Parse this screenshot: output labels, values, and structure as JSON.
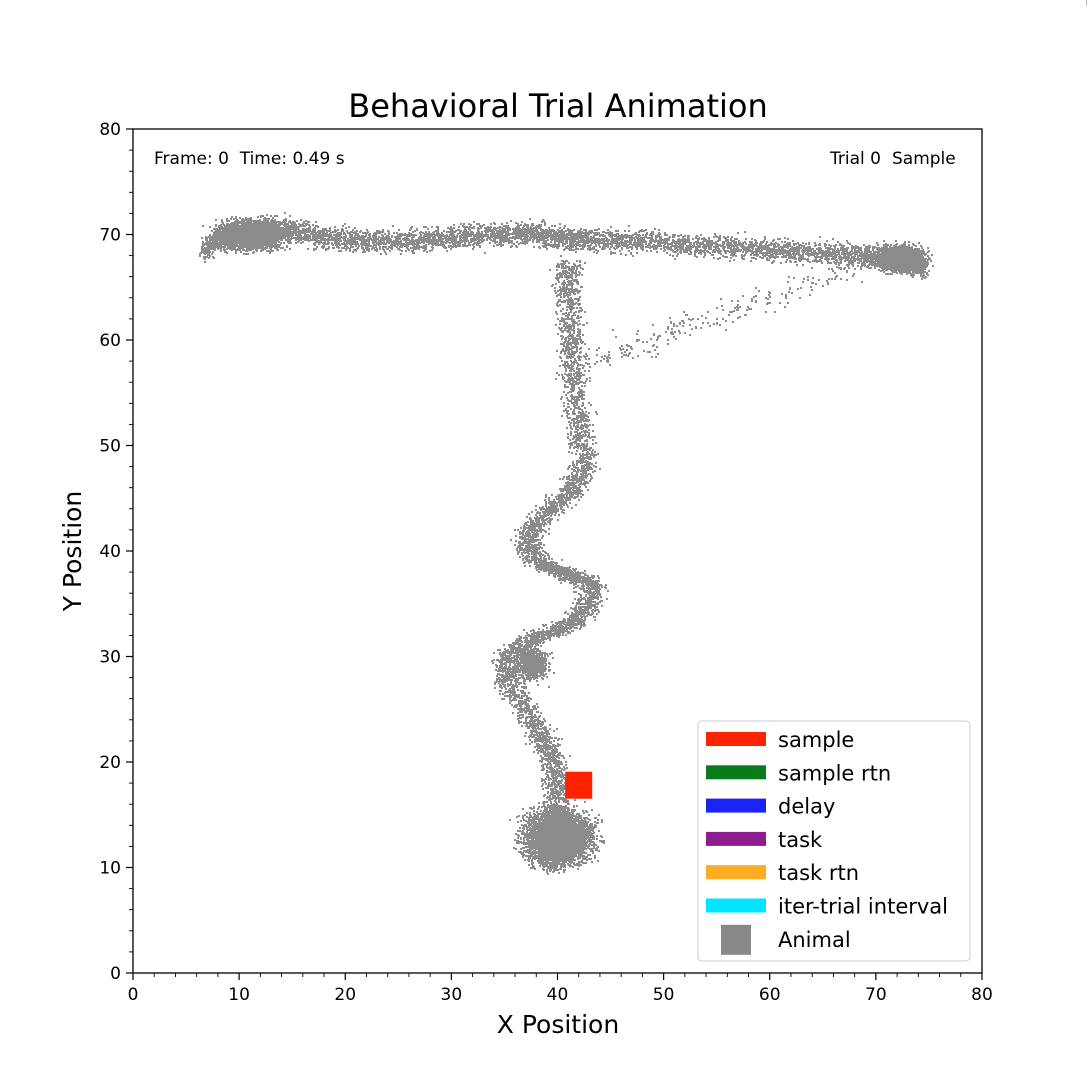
{
  "chart_data": {
    "type": "scatter",
    "title": "Behavioral Trial Animation",
    "xlabel": "X Position",
    "ylabel": "Y Position",
    "xlim": [
      0,
      80
    ],
    "ylim": [
      0,
      80
    ],
    "xticks": [
      0,
      10,
      20,
      30,
      40,
      50,
      60,
      70,
      80
    ],
    "yticks": [
      0,
      10,
      20,
      30,
      40,
      50,
      60,
      70,
      80
    ],
    "xtick_labels": [
      "0",
      "10",
      "20",
      "30",
      "40",
      "50",
      "60",
      "70",
      "80"
    ],
    "ytick_labels": [
      "0",
      "10",
      "20",
      "30",
      "40",
      "50",
      "60",
      "70",
      "80"
    ],
    "grid": false,
    "legend_position": "lower-right",
    "annotations": {
      "frame_label": "Frame: 0  Time: 0.49 s",
      "trial_label": "Trial 0",
      "phase_label": "Sample",
      "phase_color": "#ff2200"
    },
    "trajectory": {
      "name": "trajectory",
      "color": "#8c8c8c",
      "path": [
        [
          6.5,
          68.5
        ],
        [
          9,
          70.2
        ],
        [
          12,
          70.8
        ],
        [
          15,
          70.5
        ],
        [
          18,
          69.8
        ],
        [
          22,
          69.5
        ],
        [
          26,
          69.5
        ],
        [
          30,
          69.8
        ],
        [
          34,
          70
        ],
        [
          37,
          70.2
        ],
        [
          40,
          69.8
        ],
        [
          43,
          69.5
        ],
        [
          47,
          69.5
        ],
        [
          51,
          69.2
        ],
        [
          55,
          69
        ],
        [
          59,
          68.7
        ],
        [
          63,
          68.5
        ],
        [
          67,
          68.2
        ],
        [
          70,
          68
        ],
        [
          72.5,
          67.5
        ],
        [
          74.5,
          67
        ]
      ],
      "stem": [
        [
          40.8,
          67.5
        ],
        [
          41,
          64
        ],
        [
          41.2,
          60
        ],
        [
          41.5,
          56
        ],
        [
          42,
          52
        ],
        [
          42.6,
          48
        ],
        [
          41,
          45.5
        ],
        [
          38.5,
          43.5
        ],
        [
          37,
          40.8
        ],
        [
          38.5,
          38.8
        ],
        [
          41,
          37.8
        ],
        [
          43.2,
          37
        ],
        [
          42.6,
          34.5
        ],
        [
          40.5,
          32.8
        ],
        [
          37.5,
          31.8
        ],
        [
          35.2,
          30
        ],
        [
          35.3,
          27.5
        ],
        [
          37,
          25
        ],
        [
          38.5,
          22.5
        ],
        [
          39.5,
          20
        ],
        [
          40,
          17.5
        ],
        [
          40,
          15
        ],
        [
          39.8,
          12.5
        ],
        [
          39.5,
          10
        ]
      ]
    },
    "animal": {
      "label": "Animal",
      "x": 42,
      "y": 17.8,
      "color": "#888888"
    },
    "current_marker": {
      "x": 42,
      "y": 17.8,
      "color": "#ff2200"
    },
    "legend": [
      {
        "label": "sample",
        "color": "#ff2200",
        "marker": "bar"
      },
      {
        "label": "sample rtn",
        "color": "#0a7a1a",
        "marker": "bar"
      },
      {
        "label": "delay",
        "color": "#1a24f5",
        "marker": "bar"
      },
      {
        "label": "task",
        "color": "#8e1e8e",
        "marker": "bar"
      },
      {
        "label": "task rtn",
        "color": "#ffad22",
        "marker": "bar"
      },
      {
        "label": "iter-trial interval",
        "color": "#00e5ff",
        "marker": "bar"
      },
      {
        "label": "Animal",
        "color": "#888888",
        "marker": "square"
      }
    ]
  }
}
